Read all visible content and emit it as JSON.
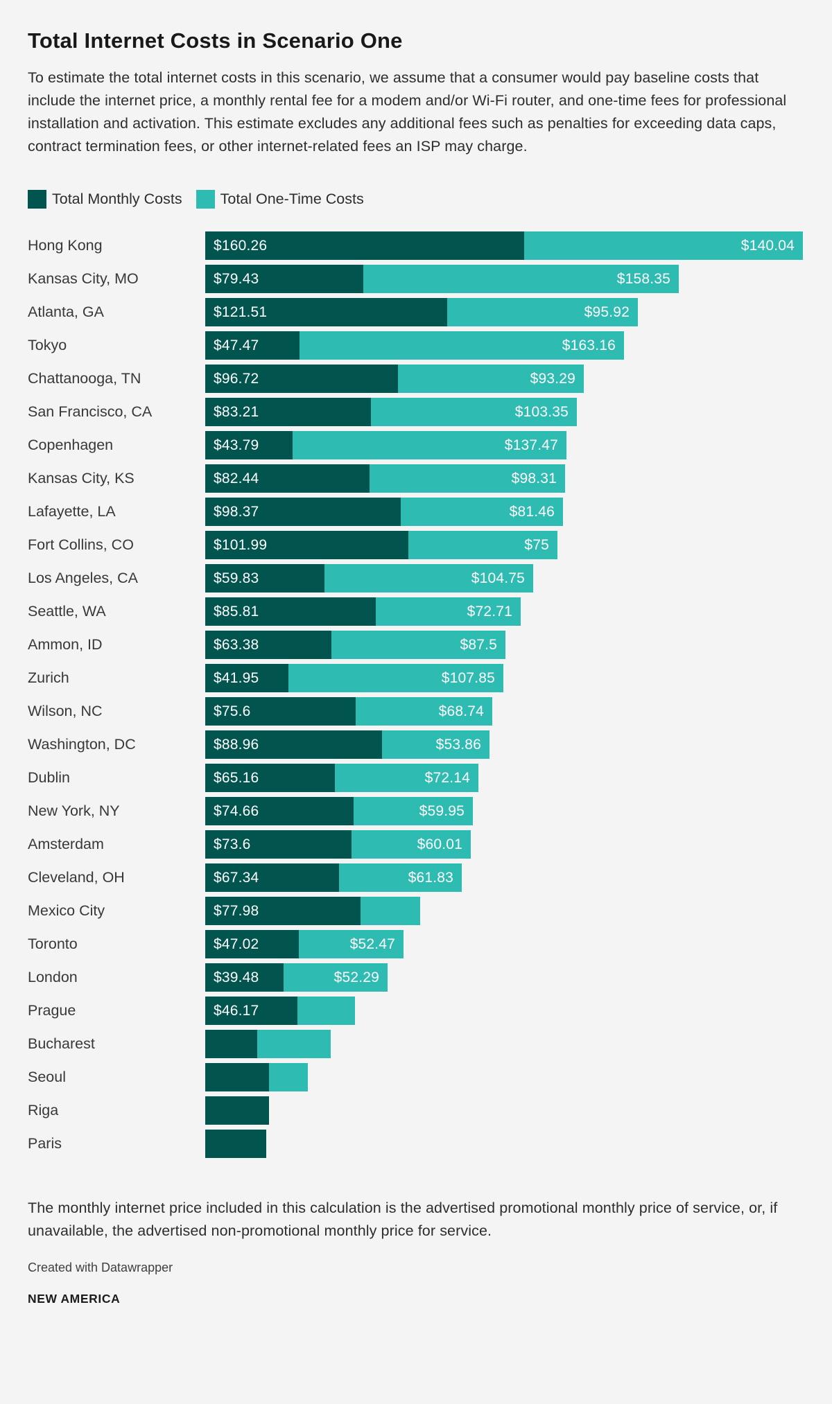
{
  "header": {
    "title": "Total Internet Costs in Scenario One",
    "description": "To estimate the total internet costs in this scenario, we assume that a consumer would pay baseline costs that include the internet price, a monthly rental fee for a modem and/or Wi-Fi router, and one-time fees for professional installation and activation. This estimate excludes any additional fees such as penalties for exceeding data caps, contract termination fees, or other internet-related fees an ISP may charge."
  },
  "colors": {
    "monthly": "#01554e",
    "onetime": "#2ebcb2",
    "background": "#f4f4f4",
    "bar_label": "#ffffff"
  },
  "legend": [
    {
      "label": "Total Monthly Costs",
      "color": "#01554e"
    },
    {
      "label": "Total One-Time Costs",
      "color": "#2ebcb2"
    }
  ],
  "chart_data": {
    "type": "bar",
    "orientation": "horizontal",
    "stacked": true,
    "title": "Total Internet Costs in Scenario One",
    "xlabel": "",
    "ylabel": "",
    "xlim": [
      0,
      300.3
    ],
    "grid": false,
    "legend_position": "top",
    "value_prefix": "$",
    "categories": [
      "Hong Kong",
      "Kansas City, MO",
      "Atlanta, GA",
      "Tokyo",
      "Chattanooga, TN",
      "San Francisco, CA",
      "Copenhagen",
      "Kansas City, KS",
      "Lafayette, LA",
      "Fort Collins, CO",
      "Los Angeles, CA",
      "Seattle, WA",
      "Ammon, ID",
      "Zurich",
      "Wilson, NC",
      "Washington, DC",
      "Dublin",
      "New York, NY",
      "Amsterdam",
      "Cleveland, OH",
      "Mexico City",
      "Toronto",
      "London",
      "Prague",
      "Bucharest",
      "Seoul",
      "Riga",
      "Paris"
    ],
    "series": [
      {
        "name": "Total Monthly Costs",
        "color": "#01554e",
        "values": [
          160.26,
          79.43,
          121.51,
          47.47,
          96.72,
          83.21,
          43.79,
          82.44,
          98.37,
          101.99,
          59.83,
          85.81,
          63.38,
          41.95,
          75.6,
          88.96,
          65.16,
          74.66,
          73.6,
          67.34,
          77.98,
          47.02,
          39.48,
          46.17,
          26,
          32,
          32,
          30.6
        ],
        "labels": [
          "$160.26",
          "$79.43",
          "$121.51",
          "$47.47",
          "$96.72",
          "$83.21",
          "$43.79",
          "$82.44",
          "$98.37",
          "$101.99",
          "$59.83",
          "$85.81",
          "$63.38",
          "$41.95",
          "$75.6",
          "$88.96",
          "$65.16",
          "$74.66",
          "$73.6",
          "$67.34",
          "$77.98",
          "$47.02",
          "$39.48",
          "$46.17",
          "",
          "",
          "",
          ""
        ]
      },
      {
        "name": "Total One-Time Costs",
        "color": "#2ebcb2",
        "values": [
          140.04,
          158.35,
          95.92,
          163.16,
          93.29,
          103.35,
          137.47,
          98.31,
          81.46,
          75,
          104.75,
          72.71,
          87.5,
          107.85,
          68.74,
          53.86,
          72.14,
          59.95,
          60.01,
          61.83,
          30,
          52.47,
          52.29,
          29,
          37,
          19.5,
          0,
          0
        ],
        "labels": [
          "$140.04",
          "$158.35",
          "$95.92",
          "$163.16",
          "$93.29",
          "$103.35",
          "$137.47",
          "$98.31",
          "$81.46",
          "$75",
          "$104.75",
          "$72.71",
          "$87.5",
          "$107.85",
          "$68.74",
          "$53.86",
          "$72.14",
          "$59.95",
          "$60.01",
          "$61.83",
          "",
          "$52.47",
          "$52.29",
          "",
          "",
          "",
          "",
          ""
        ]
      }
    ]
  },
  "footer": {
    "footnote": "The monthly internet price included in this calculation is the advertised promotional monthly price of service, or, if unavailable, the advertised non-promotional monthly price for service.",
    "attribution": "Created with Datawrapper",
    "source": "NEW AMERICA"
  }
}
